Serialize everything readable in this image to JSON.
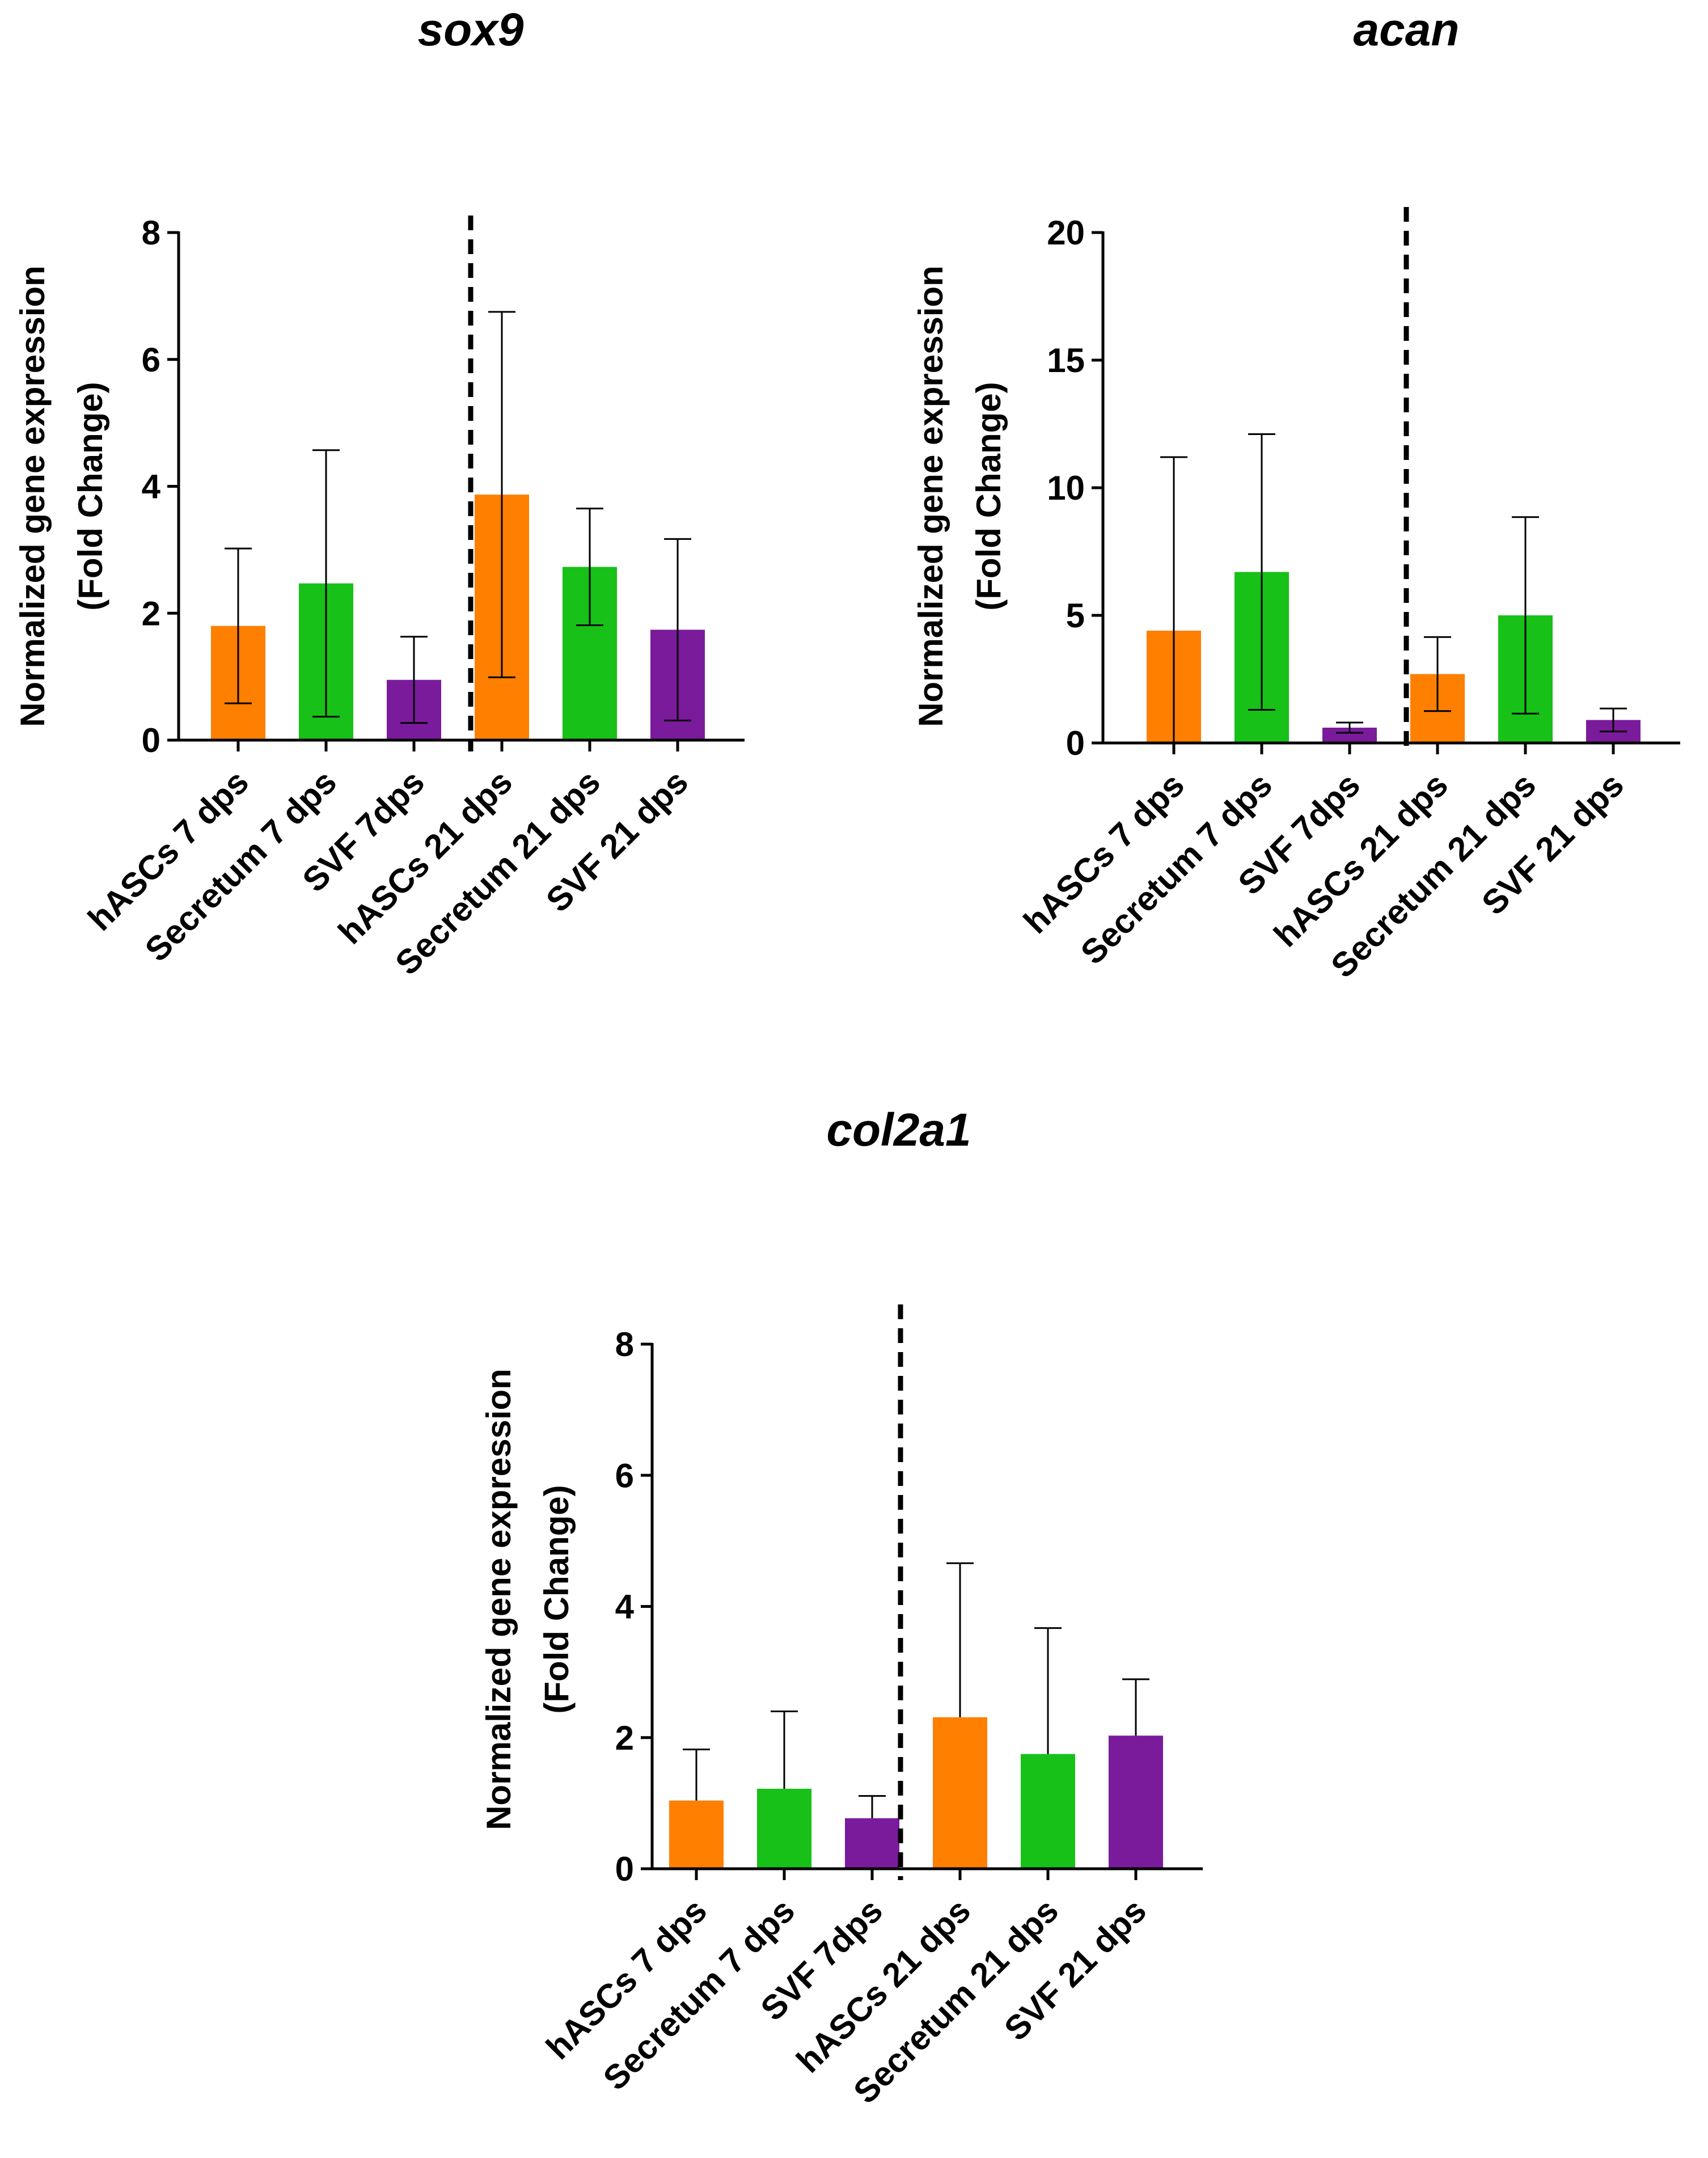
{
  "figure_title": "",
  "colors": {
    "orange": "#ff7f00",
    "green": "#17c117",
    "purple": "#7a1b9c",
    "axis": "#000000"
  },
  "chart_data": [
    {
      "id": "sox9",
      "type": "bar",
      "title": "sox9",
      "ylabel_line1": "Normalized gene expression",
      "ylabel_line2": "(Fold Change)",
      "xlabel": "",
      "ylim": [
        0,
        8
      ],
      "yticks": [
        0,
        2,
        4,
        6,
        8
      ],
      "categories": [
        "hASCs 7 dps",
        "Secretum 7 dps",
        "SVF 7dps",
        "hASCs 21 dps",
        "Secretum 21 dps",
        "SVF 21 dps"
      ],
      "values": [
        1.8,
        2.47,
        0.95,
        3.87,
        2.73,
        1.74
      ],
      "errors": [
        1.22,
        2.1,
        0.68,
        2.88,
        0.92,
        1.43
      ],
      "error_lower": [
        1.22,
        2.1,
        0.68,
        2.88,
        0.92,
        1.43
      ],
      "colors": [
        "#ff7f00",
        "#17c117",
        "#7a1b9c",
        "#ff7f00",
        "#17c117",
        "#7a1b9c"
      ],
      "separator_after_index": 2,
      "separator_style": "dashed"
    },
    {
      "id": "acan",
      "type": "bar",
      "title": "acan",
      "ylabel_line1": "Normalized gene expression",
      "ylabel_line2": "(Fold Change)",
      "xlabel": "",
      "ylim": [
        0,
        20
      ],
      "yticks": [
        0,
        5,
        10,
        15,
        20
      ],
      "categories": [
        "hASCs 7 dps",
        "Secretum 7 dps",
        "SVF 7dps",
        "hASCs 21 dps",
        "Secretum 21 dps",
        "SVF 21 dps"
      ],
      "values": [
        4.4,
        6.7,
        0.6,
        2.7,
        5.0,
        0.9
      ],
      "errors": [
        6.8,
        5.4,
        0.2,
        1.45,
        3.85,
        0.45
      ],
      "error_lower": [
        4.4,
        5.4,
        0.2,
        1.45,
        3.85,
        0.45
      ],
      "colors": [
        "#ff7f00",
        "#17c117",
        "#7a1b9c",
        "#ff7f00",
        "#17c117",
        "#7a1b9c"
      ],
      "separator_after_index": 2,
      "separator_style": "dashed"
    },
    {
      "id": "col2a1",
      "type": "bar",
      "title": "col2a1",
      "ylabel_line1": "Normalized gene expression",
      "ylabel_line2": "(Fold Change)",
      "xlabel": "",
      "ylim": [
        0,
        8
      ],
      "yticks": [
        0,
        2,
        4,
        6,
        8
      ],
      "categories": [
        "hASCs 7 dps",
        "Secretum 7 dps",
        "SVF 7dps",
        "hASCs 21 dps",
        "Secretum 21 dps",
        "SVF 21 dps"
      ],
      "values": [
        1.04,
        1.22,
        0.77,
        2.31,
        1.75,
        2.03
      ],
      "errors": [
        0.78,
        1.18,
        0.34,
        2.35,
        1.92,
        0.86
      ],
      "error_lower": [
        0,
        0,
        0,
        0,
        0,
        0
      ],
      "colors": [
        "#ff7f00",
        "#17c117",
        "#7a1b9c",
        "#ff7f00",
        "#17c117",
        "#7a1b9c"
      ],
      "separator_after_index": 2,
      "separator_style": "dashed"
    }
  ]
}
